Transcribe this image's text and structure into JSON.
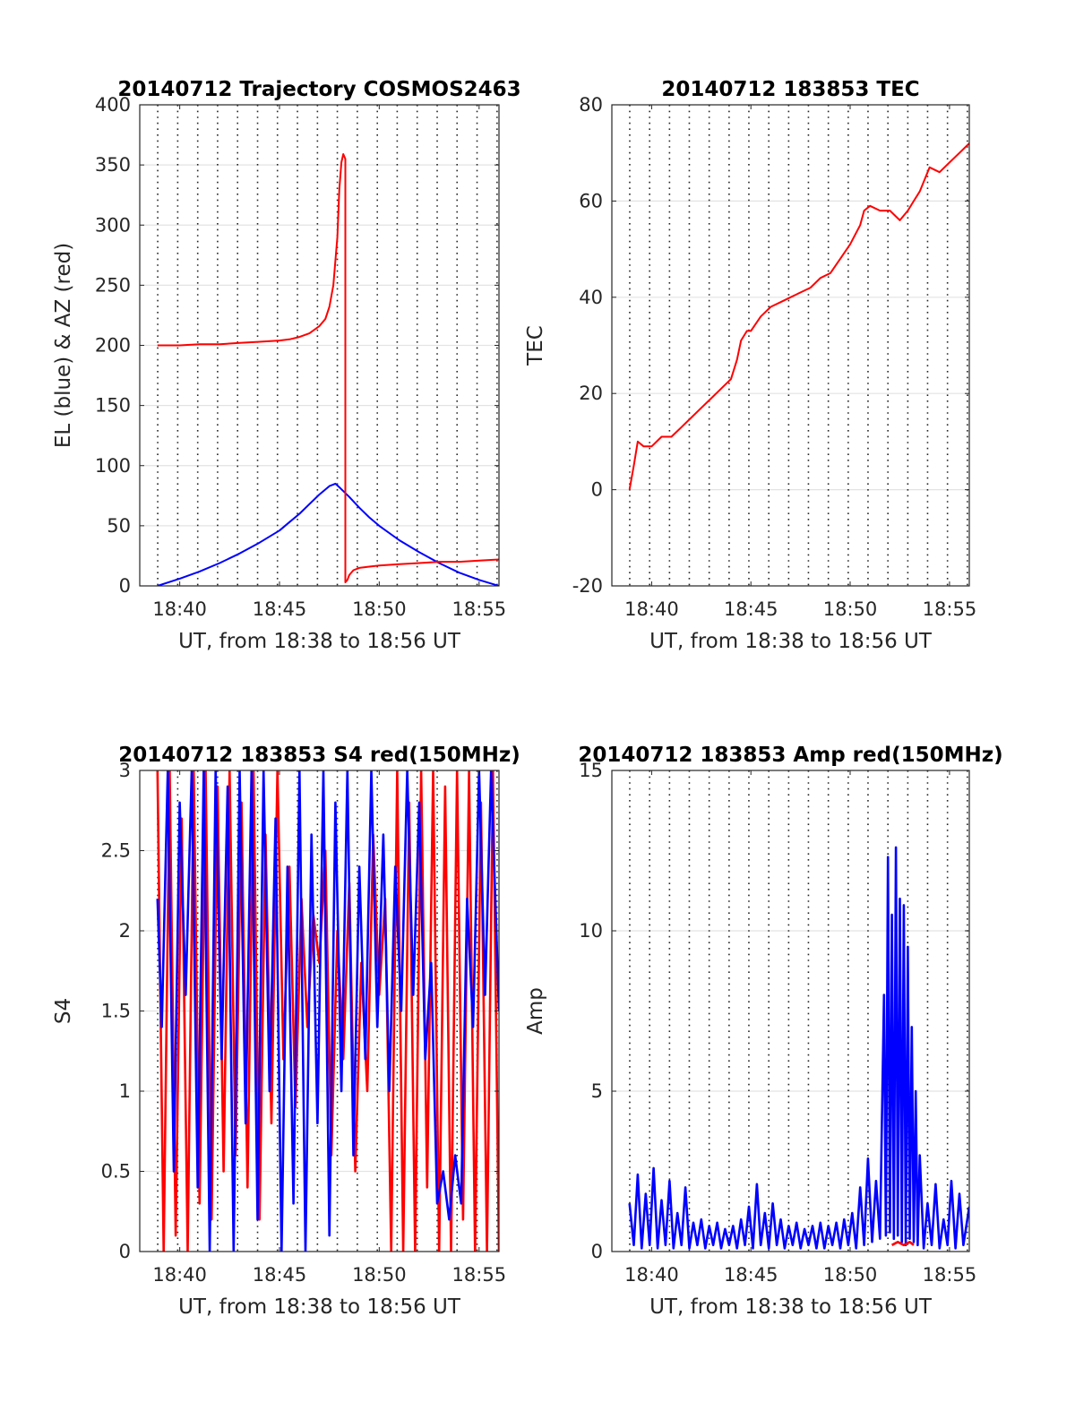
{
  "chart_data": [
    {
      "type": "line",
      "title": "20140712 Trajectory COSMOS2463",
      "xlabel": "UT, from 18:38 to 18:56 UT",
      "ylabel": "EL (blue) & AZ (red)",
      "xlim": [
        18.6333,
        18.9333
      ],
      "ylim": [
        0,
        400
      ],
      "yticks": [
        0,
        50,
        100,
        150,
        200,
        250,
        300,
        350,
        400
      ],
      "xticks": [
        {
          "v": 18.6667,
          "label": "18:40"
        },
        {
          "v": 18.75,
          "label": "18:45"
        },
        {
          "v": 18.8333,
          "label": "18:50"
        },
        {
          "v": 18.9167,
          "label": "18:55"
        }
      ],
      "dotted_x": [
        18.6483,
        18.665,
        18.6817,
        18.6983,
        18.715,
        18.7317,
        18.7483,
        18.765,
        18.7817,
        18.7983,
        18.815,
        18.8317,
        18.8483,
        18.865,
        18.8817,
        18.8983,
        18.915,
        18.9317
      ],
      "series": [
        {
          "name": "EL (blue)",
          "color": "#0000ff",
          "x": [
            18.6481,
            18.6667,
            18.6833,
            18.7,
            18.7167,
            18.7333,
            18.75,
            18.7583,
            18.7667,
            18.775,
            18.7833,
            18.7917,
            18.7967,
            18.8,
            18.8083,
            18.8167,
            18.825,
            18.8333,
            18.85,
            18.8667,
            18.8833,
            18.9,
            18.9167,
            18.9333
          ],
          "y": [
            0,
            6,
            12,
            19,
            27,
            36,
            46,
            53,
            60,
            68,
            76,
            83,
            85,
            82,
            74,
            65,
            57,
            50,
            38,
            28,
            19,
            11,
            5,
            0
          ]
        },
        {
          "name": "AZ (red)",
          "color": "#ff0000",
          "x": [
            18.6481,
            18.6667,
            18.6833,
            18.7,
            18.7167,
            18.7333,
            18.75,
            18.7583,
            18.7667,
            18.775,
            18.7833,
            18.7883,
            18.7917,
            18.795,
            18.7983,
            18.8,
            18.8017,
            18.8033,
            18.805,
            18.805,
            18.8067,
            18.8083,
            18.8117,
            18.8167,
            18.825,
            18.8333,
            18.85,
            18.8667,
            18.8833,
            18.9,
            18.9167,
            18.9333
          ],
          "y": [
            200,
            200,
            201,
            201,
            202,
            203,
            204,
            205,
            207,
            210,
            216,
            222,
            232,
            250,
            290,
            330,
            352,
            359,
            355,
            3,
            5,
            9,
            13,
            15,
            16,
            17,
            18,
            19,
            20,
            20,
            21,
            22
          ]
        }
      ]
    },
    {
      "type": "line",
      "title": "20140712 183853 TEC",
      "xlabel": "UT, from 18:38 to 18:56 UT",
      "ylabel": "TEC",
      "xlim": [
        18.6333,
        18.9333
      ],
      "ylim": [
        -20,
        80
      ],
      "yticks": [
        -20,
        0,
        20,
        40,
        60,
        80
      ],
      "xticks": [
        {
          "v": 18.6667,
          "label": "18:40"
        },
        {
          "v": 18.75,
          "label": "18:45"
        },
        {
          "v": 18.8333,
          "label": "18:50"
        },
        {
          "v": 18.9167,
          "label": "18:55"
        }
      ],
      "dotted_x": [
        18.6483,
        18.665,
        18.6817,
        18.6983,
        18.715,
        18.7317,
        18.7483,
        18.765,
        18.7817,
        18.7983,
        18.815,
        18.8317,
        18.8483,
        18.865,
        18.8817,
        18.8983,
        18.915,
        18.9317
      ],
      "series": [
        {
          "name": "TEC",
          "color": "#ff0000",
          "x": [
            18.6481,
            18.6517,
            18.655,
            18.66,
            18.6667,
            18.675,
            18.6833,
            18.6917,
            18.7,
            18.7083,
            18.7167,
            18.725,
            18.7333,
            18.7383,
            18.7417,
            18.7467,
            18.75,
            18.7583,
            18.7667,
            18.775,
            18.7833,
            18.7917,
            18.8,
            18.8083,
            18.8167,
            18.825,
            18.8333,
            18.8417,
            18.845,
            18.85,
            18.8583,
            18.8667,
            18.875,
            18.8817,
            18.8867,
            18.8917,
            18.9,
            18.9083,
            18.9167,
            18.925,
            18.9333
          ],
          "y": [
            0,
            5,
            10,
            9,
            9,
            11,
            11,
            13,
            15,
            17,
            19,
            21,
            23,
            27,
            31,
            33,
            33,
            36,
            38,
            39,
            40,
            41,
            42,
            44,
            45,
            48,
            51,
            55,
            58,
            59,
            58,
            58,
            56,
            58,
            60,
            62,
            67,
            66,
            68,
            70,
            72
          ]
        }
      ]
    },
    {
      "type": "line",
      "title": "20140712 183853 S4 red(150MHz)",
      "xlabel": "UT, from 18:38 to 18:56 UT",
      "ylabel": "S4",
      "xlim": [
        18.6333,
        18.9333
      ],
      "ylim": [
        0,
        3
      ],
      "yticks": [
        0,
        0.5,
        1,
        1.5,
        2,
        2.5,
        3
      ],
      "xticks": [
        {
          "v": 18.6667,
          "label": "18:40"
        },
        {
          "v": 18.75,
          "label": "18:45"
        },
        {
          "v": 18.8333,
          "label": "18:50"
        },
        {
          "v": 18.9167,
          "label": "18:55"
        }
      ],
      "dotted_x": [
        18.6483,
        18.665,
        18.6817,
        18.6983,
        18.715,
        18.7317,
        18.7483,
        18.765,
        18.7817,
        18.7983,
        18.815,
        18.8317,
        18.8483,
        18.865,
        18.8817,
        18.8983,
        18.915,
        18.9317
      ],
      "series": [
        {
          "name": "red",
          "color": "#ff0000",
          "x": [
            18.6481,
            18.6533,
            18.6583,
            18.6633,
            18.6683,
            18.6733,
            18.6783,
            18.6833,
            18.6883,
            18.6933,
            18.6983,
            18.7033,
            18.7083,
            18.7133,
            18.7183,
            18.7233,
            18.7283,
            18.7333,
            18.7383,
            18.7433,
            18.7483,
            18.7533,
            18.7583,
            18.7633,
            18.7683,
            18.7733,
            18.7783,
            18.7833,
            18.7883,
            18.7933,
            18.7983,
            18.8033,
            18.8083,
            18.8133,
            18.8183,
            18.8233,
            18.8283,
            18.8333,
            18.8383,
            18.8433,
            18.8483,
            18.8533,
            18.8583,
            18.8633,
            18.8683,
            18.8733,
            18.8783,
            18.8833,
            18.8883,
            18.8933,
            18.8983,
            18.9033,
            18.9083,
            18.9133,
            18.9183,
            18.9233,
            18.9283,
            18.9333
          ],
          "y": [
            3.0,
            0.0,
            3.0,
            0.1,
            2.7,
            0.0,
            3.0,
            0.3,
            3.0,
            0.2,
            2.9,
            0.5,
            3.0,
            0.6,
            2.8,
            0.4,
            3.0,
            0.2,
            2.6,
            0.8,
            3.0,
            1.2,
            2.4,
            0.9,
            2.2,
            1.4,
            2.1,
            1.8,
            2.5,
            0.6,
            2.0,
            1.2,
            2.3,
            0.5,
            1.8,
            1.0,
            2.6,
            1.6,
            2.2,
            0.0,
            3.0,
            0.0,
            2.8,
            0.0,
            3.0,
            0.4,
            3.0,
            0.0,
            2.9,
            0.0,
            3.0,
            0.2,
            3.0,
            0.0,
            2.8,
            0.0,
            3.0,
            0.0
          ]
        },
        {
          "name": "blue",
          "color": "#0000ff",
          "x": [
            18.6481,
            18.6517,
            18.6567,
            18.6617,
            18.6667,
            18.6717,
            18.6767,
            18.6817,
            18.6867,
            18.6917,
            18.6967,
            18.7017,
            18.7067,
            18.7117,
            18.7167,
            18.7217,
            18.7267,
            18.7317,
            18.7367,
            18.7417,
            18.7467,
            18.7517,
            18.7567,
            18.7617,
            18.7667,
            18.7717,
            18.7767,
            18.7817,
            18.7867,
            18.7917,
            18.7967,
            18.8017,
            18.8067,
            18.8117,
            18.8167,
            18.8217,
            18.8267,
            18.8317,
            18.8367,
            18.8417,
            18.8467,
            18.8517,
            18.8567,
            18.8617,
            18.8667,
            18.8717,
            18.8767,
            18.8817,
            18.8867,
            18.8917,
            18.8967,
            18.9017,
            18.9067,
            18.9117,
            18.9167,
            18.9217,
            18.9267,
            18.9333
          ],
          "y": [
            2.2,
            1.4,
            3.0,
            0.5,
            2.8,
            1.6,
            3.0,
            0.4,
            3.0,
            0.0,
            3.0,
            1.2,
            2.9,
            0.0,
            3.0,
            0.8,
            3.0,
            0.2,
            3.0,
            1.0,
            2.7,
            0.0,
            2.4,
            0.3,
            3.0,
            0.0,
            2.6,
            0.8,
            3.0,
            0.1,
            2.8,
            1.0,
            3.0,
            0.6,
            2.4,
            1.2,
            3.0,
            1.4,
            2.6,
            1.0,
            2.4,
            1.5,
            3.0,
            1.6,
            2.8,
            1.2,
            1.8,
            0.3,
            0.5,
            0.2,
            0.6,
            0.3,
            2.2,
            1.4,
            3.0,
            1.6,
            3.0,
            1.5
          ]
        }
      ]
    },
    {
      "type": "line",
      "title": "20140712 183853 Amp red(150MHz)",
      "xlabel": "UT, from 18:38 to 18:56 UT",
      "ylabel": "Amp",
      "xlim": [
        18.6333,
        18.9333
      ],
      "ylim": [
        0,
        15
      ],
      "yticks": [
        0,
        5,
        10,
        15
      ],
      "xticks": [
        {
          "v": 18.6667,
          "label": "18:40"
        },
        {
          "v": 18.75,
          "label": "18:45"
        },
        {
          "v": 18.8333,
          "label": "18:50"
        },
        {
          "v": 18.9167,
          "label": "18:55"
        }
      ],
      "dotted_x": [
        18.6483,
        18.665,
        18.6817,
        18.6983,
        18.715,
        18.7317,
        18.7483,
        18.765,
        18.7817,
        18.7983,
        18.815,
        18.8317,
        18.8483,
        18.865,
        18.8817,
        18.8983,
        18.915,
        18.9317
      ],
      "series": [
        {
          "name": "blue",
          "color": "#0000ff",
          "x": [
            18.6481,
            18.6517,
            18.655,
            18.6583,
            18.6617,
            18.665,
            18.6683,
            18.6717,
            18.675,
            18.6783,
            18.6817,
            18.685,
            18.6883,
            18.6917,
            18.695,
            18.6983,
            18.7017,
            18.705,
            18.7083,
            18.7117,
            18.715,
            18.7183,
            18.7217,
            18.725,
            18.7283,
            18.7317,
            18.735,
            18.7383,
            18.7417,
            18.745,
            18.7483,
            18.7517,
            18.755,
            18.7583,
            18.7617,
            18.765,
            18.7683,
            18.7717,
            18.775,
            18.7783,
            18.7817,
            18.785,
            18.7883,
            18.7917,
            18.795,
            18.7983,
            18.8017,
            18.805,
            18.8083,
            18.8117,
            18.815,
            18.8183,
            18.8217,
            18.825,
            18.8283,
            18.8317,
            18.835,
            18.8383,
            18.8417,
            18.845,
            18.8483,
            18.8517,
            18.855,
            18.8583,
            18.8617,
            18.8633,
            18.865,
            18.8667,
            18.8683,
            18.87,
            18.8717,
            18.8733,
            18.875,
            18.8767,
            18.8783,
            18.88,
            18.8817,
            18.8833,
            18.885,
            18.8867,
            18.8883,
            18.89,
            18.8917,
            18.895,
            18.8983,
            18.9017,
            18.905,
            18.9083,
            18.9117,
            18.915,
            18.9183,
            18.9217,
            18.925,
            18.9283,
            18.9333
          ],
          "y": [
            1.5,
            0.2,
            2.4,
            0.1,
            1.8,
            0.2,
            2.6,
            0.1,
            1.6,
            0.2,
            2.2,
            0.1,
            1.2,
            0.2,
            2.0,
            0.1,
            0.9,
            0.2,
            1.0,
            0.1,
            0.8,
            0.2,
            0.9,
            0.1,
            0.7,
            0.2,
            0.8,
            0.1,
            1.0,
            0.2,
            1.4,
            0.1,
            2.1,
            0.2,
            1.2,
            0.1,
            1.5,
            0.2,
            1.0,
            0.1,
            0.8,
            0.2,
            0.9,
            0.1,
            0.7,
            0.2,
            0.8,
            0.1,
            0.9,
            0.1,
            0.8,
            0.2,
            0.9,
            0.1,
            1.0,
            0.2,
            1.2,
            0.1,
            2.0,
            0.2,
            2.9,
            0.3,
            2.2,
            0.4,
            8.0,
            0.5,
            12.3,
            0.6,
            10.5,
            0.4,
            12.6,
            0.5,
            11.0,
            0.3,
            10.8,
            0.2,
            9.5,
            0.4,
            7.0,
            0.3,
            5.0,
            0.2,
            3.0,
            0.1,
            1.5,
            0.2,
            2.1,
            0.1,
            1.0,
            0.2,
            2.2,
            0.1,
            1.8,
            0.2,
            1.4
          ]
        },
        {
          "name": "red",
          "color": "#ff0000",
          "x": [
            18.8683,
            18.8733,
            18.8783,
            18.8833,
            18.8867
          ],
          "y": [
            0.2,
            0.3,
            0.2,
            0.3,
            0.2
          ]
        }
      ]
    }
  ]
}
